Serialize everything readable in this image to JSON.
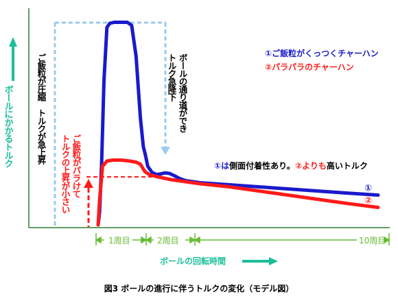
{
  "chart_data": {
    "type": "line",
    "title": "図3  ボールの進行に伴うトルクの変化（モデル図）",
    "xlabel": "ボールの回転時間",
    "ylabel": "ボールにかかるトルク",
    "x_unit": "time (model, not to scale)",
    "y_unit": "torque (relative, not to scale)",
    "xlim": [
      0,
      10
    ],
    "ylim": [
      0,
      10
    ],
    "x_ticks": [
      "1周目",
      "2周目",
      "10周目"
    ],
    "series": [
      {
        "name": "①ご飯粒がくっつくチャーハン",
        "marker": "①",
        "color": "#1a1acc",
        "x": [
          0.0,
          0.05,
          0.12,
          0.2,
          0.3,
          0.4,
          0.55,
          0.8,
          1.0,
          1.15,
          1.3,
          1.45,
          1.55,
          1.62,
          1.7,
          1.85,
          2.0,
          2.15,
          2.3,
          2.45,
          2.6,
          2.8,
          3.0,
          3.5,
          4.5,
          6.0,
          7.5,
          8.5,
          9.6
        ],
        "y": [
          0.0,
          0.6,
          3.0,
          7.0,
          9.6,
          9.8,
          9.85,
          9.85,
          9.85,
          9.7,
          8.2,
          5.2,
          3.8,
          3.4,
          2.85,
          2.55,
          2.45,
          2.48,
          2.53,
          2.5,
          2.4,
          2.25,
          2.15,
          2.05,
          1.95,
          1.8,
          1.65,
          1.55,
          1.45
        ]
      },
      {
        "name": "②パラパラのチャーハン",
        "marker": "②",
        "color": "#ff1a1a",
        "x": [
          0.0,
          0.05,
          0.15,
          0.3,
          0.5,
          0.8,
          1.1,
          1.3,
          1.45,
          1.6,
          1.75,
          2.0,
          2.5,
          3.5,
          4.5,
          6.0,
          7.5,
          8.5,
          9.6
        ],
        "y": [
          0.0,
          1.2,
          2.85,
          3.1,
          3.15,
          3.15,
          3.1,
          3.05,
          2.95,
          2.6,
          2.45,
          2.35,
          2.2,
          2.0,
          1.85,
          1.55,
          1.25,
          1.05,
          0.85
        ]
      }
    ],
    "annotations": {
      "compress": "ご飯粒が圧縮　トルクが急上昇",
      "loosen_line1": "ご飯粒がパラけて",
      "loosen_line2": "トルクの上昇が小さい",
      "groove_line1": "ボールの通り道ができ",
      "groove_line2": "トルク急降下",
      "note_part1": "①は",
      "note_part2": "側面付着性あり。",
      "note_part3": "②よりも",
      "note_part4": "高いトルク"
    },
    "grid": false,
    "legend_position": "top-right"
  }
}
